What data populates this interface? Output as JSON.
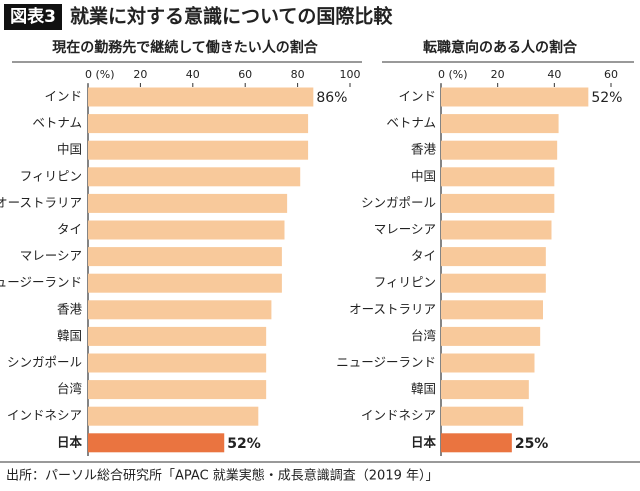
{
  "header": {
    "badge": "図表3",
    "title": "就業に対する意識についての国際比較"
  },
  "chart_data": [
    {
      "type": "bar",
      "orientation": "horizontal",
      "title": "現在の勤務先で継続して働きたい人の割合",
      "categories": [
        "インド",
        "ベトナム",
        "中国",
        "フィリピン",
        "オーストラリア",
        "タイ",
        "マレーシア",
        "ニュージーランド",
        "香港",
        "韓国",
        "シンガポール",
        "台湾",
        "インドネシア",
        "日本"
      ],
      "values": [
        86,
        84,
        84,
        81,
        76,
        75,
        74,
        74,
        70,
        68,
        68,
        68,
        65,
        52
      ],
      "value_labels": [
        "86%",
        null,
        null,
        null,
        null,
        null,
        null,
        null,
        null,
        null,
        null,
        null,
        null,
        "52%"
      ],
      "colors": [
        "#f8c99b",
        "#f8c99b",
        "#f8c99b",
        "#f8c99b",
        "#f8c99b",
        "#f8c99b",
        "#f8c99b",
        "#f8c99b",
        "#f8c99b",
        "#f8c99b",
        "#f8c99b",
        "#f8c99b",
        "#f8c99b",
        "#ea7440"
      ],
      "xlim": [
        0,
        100
      ],
      "xticks": [
        {
          "value": 0,
          "label": "0 (%)"
        },
        20,
        40,
        60,
        80,
        100
      ]
    },
    {
      "type": "bar",
      "orientation": "horizontal",
      "title": "転職意向のある人の割合",
      "categories": [
        "インド",
        "ベトナム",
        "香港",
        "中国",
        "シンガポール",
        "マレーシア",
        "タイ",
        "フィリピン",
        "オーストラリア",
        "台湾",
        "ニュージーランド",
        "韓国",
        "インドネシア",
        "日本"
      ],
      "values": [
        52,
        41.5,
        41,
        40,
        40,
        39,
        37,
        37,
        36,
        35,
        33,
        31,
        29,
        25
      ],
      "value_labels": [
        "52%",
        null,
        null,
        null,
        null,
        null,
        null,
        null,
        null,
        null,
        null,
        null,
        null,
        "25%"
      ],
      "colors": [
        "#f8c99b",
        "#f8c99b",
        "#f8c99b",
        "#f8c99b",
        "#f8c99b",
        "#f8c99b",
        "#f8c99b",
        "#f8c99b",
        "#f8c99b",
        "#f8c99b",
        "#f8c99b",
        "#f8c99b",
        "#f8c99b",
        "#ea7440"
      ],
      "xlim": [
        0,
        66
      ],
      "xticks": [
        {
          "value": 0,
          "label": "0 (%)"
        },
        20,
        40,
        60
      ]
    }
  ],
  "source": "出所：パーソル総合研究所「APAC 就業実態・成長意識調査（2019 年）」"
}
